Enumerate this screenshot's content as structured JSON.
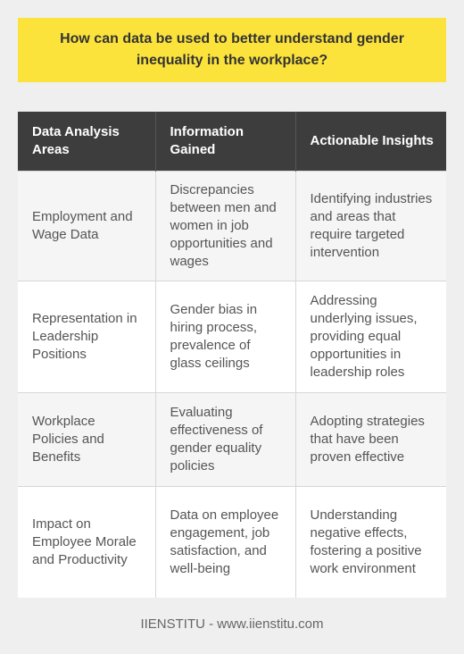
{
  "title": "How can data be used to better understand gender inequality in the workplace?",
  "table": {
    "headers": [
      "Data Analysis Areas",
      "Information Gained",
      "Actionable Insights"
    ],
    "rows": [
      [
        "Employment and Wage Data",
        "Discrepancies between men and women in job opportunities and wages",
        "Identifying industries and areas that require targeted intervention"
      ],
      [
        "Representation in Leadership Positions",
        "Gender bias in hiring process, prevalence of glass ceilings",
        "Addressing underlying issues, providing equal opportunities in leadership roles"
      ],
      [
        "Workplace Policies and Benefits",
        "Evaluating effectiveness of gender equality policies",
        "Adopting strategies that have been proven effective"
      ],
      [
        "Impact on Employee Morale and Productivity",
        "Data on employee engagement, job satisfaction, and well-being",
        "Understanding negative effects, fostering a positive work environment"
      ]
    ]
  },
  "footer": "IIENSTITU - www.iienstitu.com"
}
